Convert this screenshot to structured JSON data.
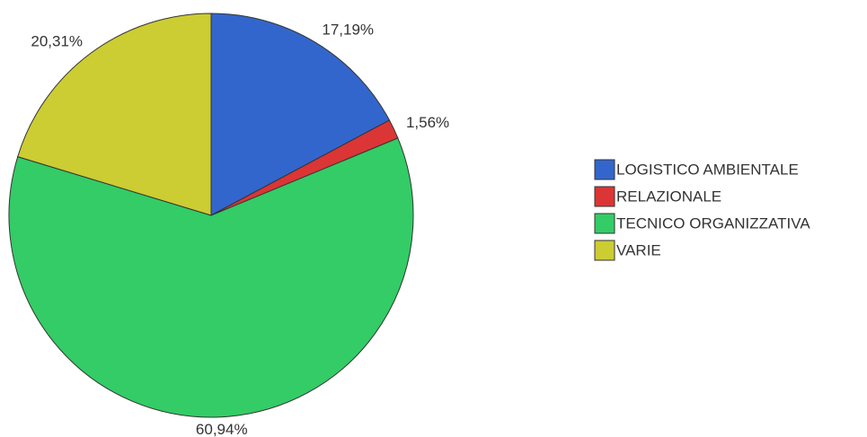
{
  "chart_data": {
    "type": "pie",
    "categories": [
      "LOGISTICO AMBIENTALE",
      "RELAZIONALE",
      "TECNICO ORGANIZZATIVA",
      "VARIE"
    ],
    "values": [
      17.19,
      1.56,
      60.94,
      20.31
    ],
    "value_labels": [
      "17,19%",
      "1,56%",
      "60,94%",
      "20,31%"
    ],
    "colors": [
      "#3366cc",
      "#dc3535",
      "#33cc66",
      "#cccc33"
    ],
    "legend": "right"
  }
}
